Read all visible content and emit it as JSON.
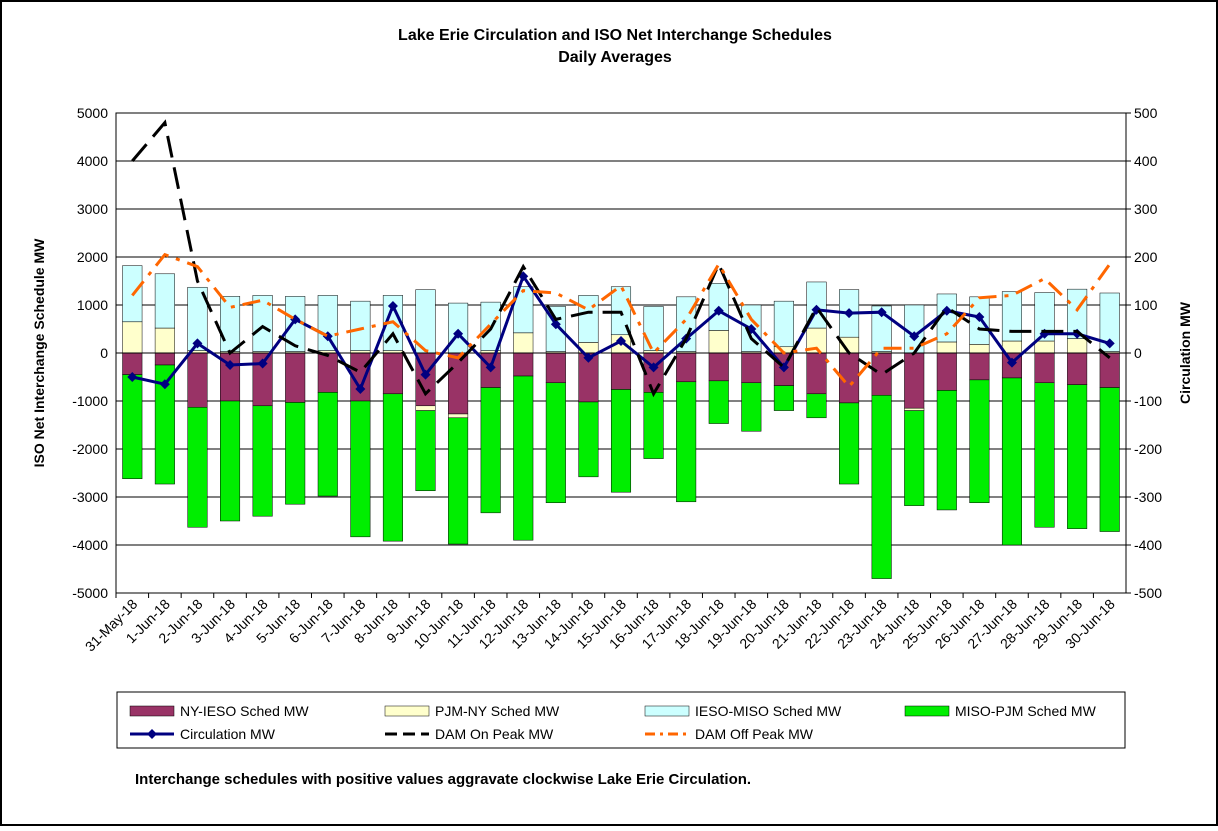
{
  "chart_data": {
    "type": "bar",
    "title": "Lake Erie Circulation and ISO Net Interchange Schedules",
    "subtitle": "Daily Averages",
    "y_label": "ISO Net Interchange Schedule MW",
    "y2_label": "Circulation MW",
    "note": "Interchange schedules with positive values aggravate clockwise Lake Erie Circulation.",
    "categories": [
      "31-May-18",
      "1-Jun-18",
      "2-Jun-18",
      "3-Jun-18",
      "4-Jun-18",
      "5-Jun-18",
      "6-Jun-18",
      "7-Jun-18",
      "8-Jun-18",
      "9-Jun-18",
      "10-Jun-18",
      "11-Jun-18",
      "12-Jun-18",
      "13-Jun-18",
      "14-Jun-18",
      "15-Jun-18",
      "16-Jun-18",
      "17-Jun-18",
      "18-Jun-18",
      "19-Jun-18",
      "20-Jun-18",
      "21-Jun-18",
      "22-Jun-18",
      "23-Jun-18",
      "24-Jun-18",
      "25-Jun-18",
      "26-Jun-18",
      "27-Jun-18",
      "28-Jun-18",
      "29-Jun-18",
      "30-Jun-18"
    ],
    "ylim": [
      -5000,
      5000
    ],
    "yticks": [
      -5000,
      -4000,
      -3000,
      -2000,
      -1000,
      0,
      1000,
      2000,
      3000,
      4000,
      5000
    ],
    "y2lim": [
      -500,
      500
    ],
    "y2ticks": [
      -500,
      -400,
      -300,
      -200,
      -100,
      0,
      100,
      200,
      300,
      400,
      500
    ],
    "grid": true,
    "stacked": true,
    "series": [
      {
        "name": "NY-IESO Sched MW",
        "type": "bar",
        "color": "#993366",
        "values": [
          -450,
          -250,
          -1130,
          -1000,
          -1100,
          -1030,
          -820,
          -1000,
          -850,
          -1100,
          -1270,
          -720,
          -480,
          -620,
          -1020,
          -760,
          -820,
          -600,
          -580,
          -620,
          -680,
          -850,
          -1040,
          -880,
          -1150,
          -780,
          -560,
          -520,
          -620,
          -660,
          -720
        ]
      },
      {
        "name": "PJM-NY Sched MW",
        "type": "bar",
        "color": "#ffffcc",
        "values": [
          650,
          520,
          50,
          30,
          30,
          30,
          50,
          50,
          50,
          -100,
          -80,
          50,
          420,
          30,
          220,
          380,
          50,
          30,
          470,
          30,
          130,
          520,
          330,
          30,
          -50,
          230,
          180,
          250,
          250,
          300,
          30
        ]
      },
      {
        "name": "IESO-MISO Sched MW",
        "type": "bar",
        "color": "#ccffff",
        "values": [
          1170,
          1130,
          1320,
          1150,
          1170,
          1150,
          1150,
          1030,
          1150,
          1320,
          1040,
          1010,
          960,
          940,
          980,
          1000,
          920,
          1140,
          980,
          970,
          950,
          960,
          990,
          950,
          1000,
          1000,
          990,
          1030,
          1010,
          1030,
          1220
        ]
      },
      {
        "name": "MISO-PJM Sched MW",
        "type": "bar",
        "color": "#00ee00",
        "values": [
          -2170,
          -2480,
          -2500,
          -2500,
          -2300,
          -2120,
          -2160,
          -2830,
          -3070,
          -1670,
          -2630,
          -2610,
          -3420,
          -2500,
          -1560,
          -2140,
          -1380,
          -2500,
          -890,
          -1010,
          -520,
          -500,
          -1690,
          -3820,
          -1980,
          -2490,
          -2560,
          -3480,
          -3010,
          -3000,
          -3000
        ]
      },
      {
        "name": "Circulation MW",
        "type": "line",
        "axis": "y2",
        "color": "#000080",
        "line_style": "solid",
        "marker": "diamond",
        "values": [
          -50,
          -65,
          20,
          -25,
          -22,
          70,
          35,
          -75,
          98,
          -45,
          40,
          -30,
          160,
          60,
          -10,
          25,
          -30,
          30,
          88,
          50,
          -30,
          90,
          83,
          85,
          35,
          88,
          75,
          -20,
          40,
          40,
          20
        ]
      },
      {
        "name": "DAM On Peak MW",
        "type": "line",
        "axis": "y2",
        "color": "#000000",
        "line_style": "dash",
        "values": [
          400,
          480,
          150,
          0,
          55,
          15,
          -5,
          -40,
          40,
          -85,
          -20,
          50,
          180,
          70,
          85,
          85,
          -85,
          30,
          185,
          30,
          -30,
          95,
          0,
          -45,
          0,
          95,
          50,
          45,
          45,
          45,
          -10
        ]
      },
      {
        "name": "DAM Off Peak MW",
        "type": "line",
        "axis": "y2",
        "color": "#ff6600",
        "line_style": "dash-dot",
        "values": [
          120,
          205,
          180,
          95,
          110,
          70,
          35,
          50,
          65,
          5,
          -10,
          60,
          130,
          125,
          90,
          140,
          0,
          70,
          185,
          70,
          0,
          10,
          -70,
          10,
          10,
          40,
          115,
          120,
          155,
          90,
          185
        ]
      }
    ]
  }
}
